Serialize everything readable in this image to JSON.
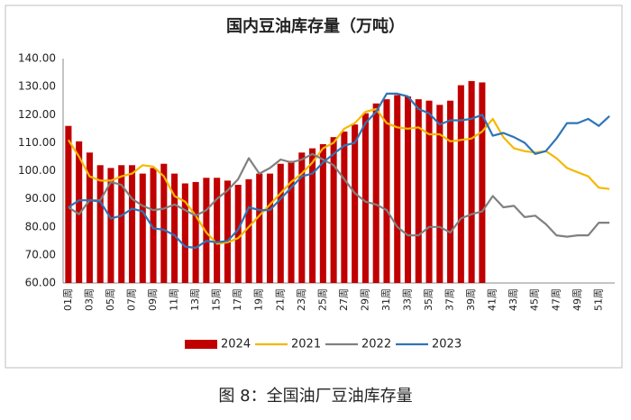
{
  "chart_data": {
    "type": "bar",
    "title": "国内豆油库存量（万吨）",
    "caption": "图 8：全国油厂豆油库存量",
    "categories": [
      "01周",
      null,
      "03周",
      null,
      "05周",
      null,
      "07周",
      null,
      "09周",
      null,
      "11周",
      null,
      "13周",
      null,
      "15周",
      null,
      "17周",
      null,
      "19周",
      null,
      "21周",
      null,
      "23周",
      null,
      "25周",
      null,
      "27周",
      null,
      "29周",
      null,
      "31周",
      null,
      "33周",
      null,
      "35周",
      null,
      "37周",
      null,
      "39周",
      null,
      "41周",
      null,
      "43周",
      null,
      "45周",
      null,
      "47周",
      null,
      "49周",
      null,
      "51周",
      null
    ],
    "series": [
      {
        "name": "2024",
        "type": "bar",
        "color": "#c00000",
        "values": [
          116,
          110.5,
          106.5,
          102,
          101,
          102,
          102,
          99,
          101,
          102.5,
          99,
          95.5,
          96,
          97.5,
          97.5,
          96.5,
          95,
          97,
          99,
          99,
          102.5,
          103.5,
          106.5,
          108,
          109.5,
          112,
          114,
          116.5,
          120.5,
          124,
          125.5,
          127,
          126.5,
          125.5,
          125,
          123.5,
          125,
          130.5,
          132,
          131.5,
          null,
          null,
          null,
          null,
          null,
          null,
          null,
          null,
          null,
          null,
          null,
          null
        ]
      },
      {
        "name": "2021",
        "type": "line",
        "color": "#f5b800",
        "values": [
          111,
          105,
          98,
          96.5,
          96.5,
          98,
          99,
          102,
          101.5,
          98,
          91,
          89,
          84,
          78,
          74,
          74.5,
          76,
          80,
          84,
          88,
          92,
          96,
          99,
          103,
          108,
          110,
          115,
          117,
          121,
          122,
          117,
          115.5,
          115,
          115.5,
          113,
          113,
          110.5,
          111,
          111.5,
          114,
          118.5,
          112,
          108,
          107,
          106.5,
          107,
          104.5,
          101,
          99.5,
          98,
          94,
          93.5
        ]
      },
      {
        "name": "2022",
        "type": "line",
        "color": "#808080",
        "values": [
          87,
          84.5,
          89.5,
          89.5,
          96,
          95,
          90,
          87.5,
          86,
          86.5,
          88,
          86,
          84,
          86,
          90,
          93,
          97,
          104.5,
          99,
          101,
          104,
          103,
          104,
          106,
          104,
          102,
          97,
          92,
          89,
          88,
          86,
          80,
          77,
          77,
          80,
          80,
          78,
          83,
          84.5,
          85.5,
          91,
          87,
          87.5,
          83.5,
          84,
          81,
          77,
          76.5,
          77,
          77,
          81.5,
          81.5
        ]
      },
      {
        "name": "2023",
        "type": "line",
        "color": "#2e75b6",
        "values": [
          87,
          89.5,
          89.5,
          89,
          83,
          84,
          86.5,
          85.5,
          79.5,
          79,
          77,
          73,
          72.5,
          75,
          74.5,
          75,
          79,
          87,
          86,
          86,
          90,
          94,
          98,
          99,
          103,
          106,
          109,
          110,
          117,
          121,
          127.5,
          127.5,
          126.5,
          122,
          120.5,
          116.5,
          118,
          118,
          118.5,
          120,
          112.5,
          113.5,
          112,
          110,
          106,
          107,
          111.5,
          117,
          117,
          118.5,
          116,
          119.5
        ]
      }
    ],
    "ylim": [
      60,
      140
    ],
    "yticks": [
      {
        "value": 60,
        "label": "60.00"
      },
      {
        "value": 70,
        "label": "70.00"
      },
      {
        "value": 80,
        "label": "80.00"
      },
      {
        "value": 90,
        "label": "90.00"
      },
      {
        "value": 100,
        "label": "100.00"
      },
      {
        "value": 110,
        "label": "110.00"
      },
      {
        "value": 120,
        "label": "120.00"
      },
      {
        "value": 130,
        "label": "130.00"
      },
      {
        "value": 140,
        "label": "140.00"
      }
    ],
    "grid": false,
    "legend": "bottom"
  }
}
